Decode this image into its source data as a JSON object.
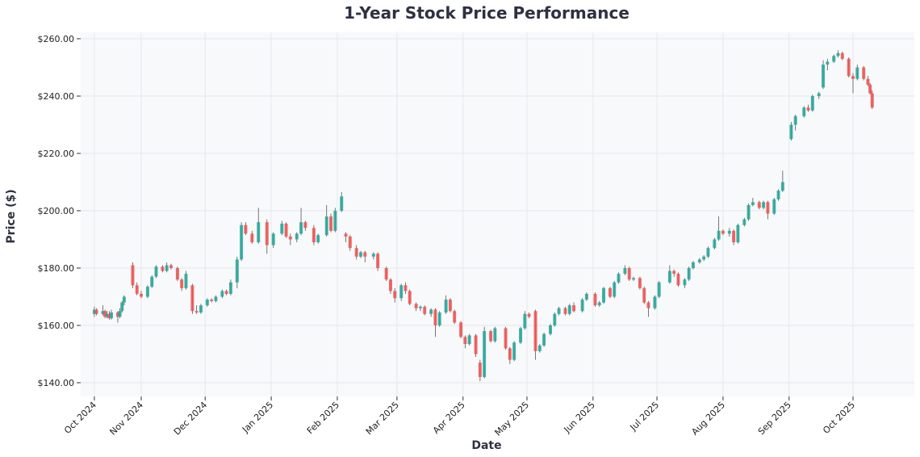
{
  "chart_data": {
    "type": "candlestick",
    "title": "1-Year Stock Price Performance",
    "xlabel": "Date",
    "ylabel": "Price ($)",
    "ylim": [
      135,
      262
    ],
    "yticks": [
      140,
      160,
      180,
      200,
      220,
      240,
      260
    ],
    "ytick_labels": [
      "$140.00",
      "$160.00",
      "$180.00",
      "$200.00",
      "$220.00",
      "$240.00",
      "$260.00"
    ],
    "xticks": [
      {
        "date": "2024-10-10",
        "label": "Oct 2024"
      },
      {
        "date": "2024-11-01",
        "label": "Nov 2024"
      },
      {
        "date": "2024-12-01",
        "label": "Dec 2024"
      },
      {
        "date": "2025-01-01",
        "label": "Jan 2025"
      },
      {
        "date": "2025-02-01",
        "label": "Feb 2025"
      },
      {
        "date": "2025-03-01",
        "label": "Mar 2025"
      },
      {
        "date": "2025-04-01",
        "label": "Apr 2025"
      },
      {
        "date": "2025-05-01",
        "label": "May 2025"
      },
      {
        "date": "2025-06-01",
        "label": "Jun 2025"
      },
      {
        "date": "2025-07-01",
        "label": "Jul 2025"
      },
      {
        "date": "2025-08-01",
        "label": "Aug 2025"
      },
      {
        "date": "2025-09-01",
        "label": "Sep 2025"
      },
      {
        "date": "2025-10-01",
        "label": "Oct 2025"
      }
    ],
    "grid": true,
    "colors": {
      "up": "#26a69a",
      "down": "#ef5350",
      "wick": "#555555",
      "plot_bg": "#f8f9fb",
      "grid": "#e6e8ec",
      "title": "#2d3142"
    },
    "columns": [
      "date",
      "open",
      "high",
      "low",
      "close"
    ],
    "candles": [
      [
        "2024-10-10",
        164,
        166.5,
        163,
        165.5
      ],
      [
        "2024-10-11",
        165.5,
        166,
        163.5,
        164
      ],
      [
        "2024-10-14",
        164,
        167,
        163.5,
        165
      ],
      [
        "2024-10-15",
        165,
        165.5,
        162.5,
        163
      ],
      [
        "2024-10-16",
        163,
        165,
        162.5,
        164
      ],
      [
        "2024-10-17",
        164,
        165,
        162,
        162.5
      ],
      [
        "2024-10-18",
        162.5,
        165.5,
        162,
        164.5
      ],
      [
        "2024-10-21",
        164.5,
        165,
        161,
        163
      ],
      [
        "2024-10-22",
        163,
        166,
        162.5,
        165
      ],
      [
        "2024-10-23",
        165,
        168.5,
        164.5,
        168
      ],
      [
        "2024-10-24",
        168,
        170.5,
        167,
        170
      ],
      [
        "2024-10-28",
        181,
        182,
        173,
        174
      ],
      [
        "2024-10-30",
        174,
        175,
        170.5,
        171
      ],
      [
        "2024-11-01",
        171,
        172,
        169.5,
        170
      ],
      [
        "2024-11-04",
        170,
        174,
        169.5,
        173.5
      ],
      [
        "2024-11-06",
        173.5,
        177.5,
        173,
        177
      ],
      [
        "2024-11-08",
        177,
        181,
        176.5,
        180.5
      ],
      [
        "2024-11-11",
        180.5,
        181,
        178.5,
        179
      ],
      [
        "2024-11-13",
        179,
        182,
        178.5,
        181
      ],
      [
        "2024-11-15",
        181,
        181.5,
        179.5,
        180
      ],
      [
        "2024-11-18",
        180,
        180.5,
        175.5,
        176
      ],
      [
        "2024-11-20",
        176,
        176.5,
        172,
        173
      ],
      [
        "2024-11-22",
        173,
        179,
        172.5,
        178
      ],
      [
        "2024-11-25",
        174,
        174.5,
        164,
        165
      ],
      [
        "2024-11-27",
        165,
        167,
        164,
        164.5
      ],
      [
        "2024-11-29",
        164.5,
        167.5,
        164,
        167
      ],
      [
        "2024-12-02",
        167,
        169.5,
        166.5,
        169
      ],
      [
        "2024-12-04",
        169,
        169.5,
        168,
        168.5
      ],
      [
        "2024-12-06",
        168.5,
        170.5,
        168,
        170
      ],
      [
        "2024-12-09",
        170,
        172.5,
        169.5,
        172
      ],
      [
        "2024-12-11",
        172,
        172.5,
        170.5,
        171
      ],
      [
        "2024-12-13",
        171,
        176,
        170.5,
        175
      ],
      [
        "2024-12-16",
        175,
        184,
        173,
        183
      ],
      [
        "2024-12-18",
        183,
        196,
        182.5,
        195
      ],
      [
        "2024-12-20",
        195,
        196,
        191.5,
        192
      ],
      [
        "2024-12-23",
        192,
        193,
        188.5,
        189
      ],
      [
        "2024-12-26",
        189,
        201,
        188.5,
        196
      ],
      [
        "2024-12-30",
        196,
        197,
        185,
        188
      ],
      [
        "2025-01-02",
        188,
        192.5,
        187,
        192
      ],
      [
        "2025-01-06",
        192,
        196.5,
        191.5,
        195.5
      ],
      [
        "2025-01-08",
        195.5,
        196,
        190.5,
        191
      ],
      [
        "2025-01-10",
        191,
        192,
        188,
        190
      ],
      [
        "2025-01-13",
        190,
        192.5,
        189,
        192
      ],
      [
        "2025-01-15",
        192,
        201,
        191.5,
        196
      ],
      [
        "2025-01-17",
        196,
        196.5,
        193,
        194
      ],
      [
        "2025-01-21",
        194,
        195,
        188,
        189
      ],
      [
        "2025-01-23",
        189,
        192,
        188.5,
        191.5
      ],
      [
        "2025-01-27",
        191.5,
        202,
        191,
        198
      ],
      [
        "2025-01-29",
        198,
        199,
        192.5,
        193
      ],
      [
        "2025-01-31",
        193,
        201,
        192.5,
        200
      ],
      [
        "2025-02-03",
        200,
        206.5,
        199.5,
        205
      ],
      [
        "2025-02-05",
        192,
        192.5,
        189,
        191
      ],
      [
        "2025-02-07",
        191,
        191.5,
        186,
        187
      ],
      [
        "2025-02-10",
        187,
        188,
        183,
        184
      ],
      [
        "2025-02-12",
        184,
        186,
        183.5,
        185.5
      ],
      [
        "2025-02-14",
        185.5,
        186,
        182,
        184
      ],
      [
        "2025-02-18",
        184,
        185.5,
        183,
        185
      ],
      [
        "2025-02-20",
        185,
        185.5,
        179,
        180
      ],
      [
        "2025-02-24",
        180,
        180.5,
        175.5,
        176
      ],
      [
        "2025-02-26",
        176,
        176.5,
        171,
        172
      ],
      [
        "2025-02-28",
        172,
        173,
        168,
        169.5
      ],
      [
        "2025-03-03",
        169.5,
        174.5,
        168.5,
        174
      ],
      [
        "2025-03-05",
        174,
        175,
        171,
        172
      ],
      [
        "2025-03-07",
        172,
        172.5,
        167,
        167.5
      ],
      [
        "2025-03-10",
        167.5,
        168,
        165,
        166
      ],
      [
        "2025-03-12",
        166,
        167,
        165,
        166.5
      ],
      [
        "2025-03-14",
        166.5,
        167,
        163.5,
        164
      ],
      [
        "2025-03-17",
        164,
        166,
        163,
        165.5
      ],
      [
        "2025-03-19",
        165.5,
        166,
        156,
        160
      ],
      [
        "2025-03-21",
        160,
        165,
        159.5,
        164.5
      ],
      [
        "2025-03-24",
        164.5,
        170.5,
        164,
        169
      ],
      [
        "2025-03-26",
        169,
        169.5,
        164.5,
        165
      ],
      [
        "2025-03-28",
        165,
        165.5,
        160.5,
        161
      ],
      [
        "2025-03-31",
        161,
        161.5,
        155.5,
        156
      ],
      [
        "2025-04-02",
        156,
        156.5,
        152,
        153.5
      ],
      [
        "2025-04-04",
        153.5,
        157,
        153,
        156.5
      ],
      [
        "2025-04-07",
        156.5,
        157,
        149,
        150
      ],
      [
        "2025-04-09",
        147,
        148,
        140.5,
        142
      ],
      [
        "2025-04-11",
        142,
        159.5,
        141.5,
        158
      ],
      [
        "2025-04-14",
        158,
        158.5,
        154,
        154.5
      ],
      [
        "2025-04-16",
        154.5,
        159.5,
        154,
        159
      ],
      [
        "2025-04-21",
        159,
        159.5,
        151.5,
        152
      ],
      [
        "2025-04-23",
        152,
        152.5,
        146.5,
        148
      ],
      [
        "2025-04-25",
        148,
        154.5,
        147.5,
        154
      ],
      [
        "2025-04-28",
        154,
        159.5,
        153.5,
        159
      ],
      [
        "2025-04-30",
        159,
        165,
        158.5,
        164
      ],
      [
        "2025-05-02",
        164,
        164.5,
        162.5,
        163
      ],
      [
        "2025-05-05",
        165,
        165.5,
        148,
        151
      ],
      [
        "2025-05-07",
        151,
        153.5,
        150.5,
        153
      ],
      [
        "2025-05-09",
        153,
        157.5,
        152.5,
        157
      ],
      [
        "2025-05-12",
        157,
        160.5,
        156.5,
        160
      ],
      [
        "2025-05-14",
        160,
        164.5,
        159.5,
        164
      ],
      [
        "2025-05-16",
        164,
        166.5,
        163.5,
        166
      ],
      [
        "2025-05-19",
        166,
        166.5,
        163.5,
        164
      ],
      [
        "2025-05-21",
        164,
        167.5,
        163.5,
        167
      ],
      [
        "2025-05-23",
        167,
        168,
        164.5,
        165
      ],
      [
        "2025-05-27",
        165,
        169.5,
        164.5,
        169
      ],
      [
        "2025-05-29",
        169,
        171.5,
        168.5,
        171
      ],
      [
        "2025-06-02",
        171,
        171.5,
        166.5,
        167
      ],
      [
        "2025-06-04",
        167,
        168.5,
        166.5,
        168
      ],
      [
        "2025-06-06",
        168,
        173.5,
        167.5,
        173
      ],
      [
        "2025-06-09",
        173,
        173.5,
        169.5,
        170
      ],
      [
        "2025-06-11",
        170,
        175.5,
        169.5,
        175
      ],
      [
        "2025-06-13",
        175,
        178.5,
        174.5,
        178
      ],
      [
        "2025-06-16",
        178,
        181,
        177.5,
        180
      ],
      [
        "2025-06-18",
        180,
        180.5,
        175.5,
        176
      ],
      [
        "2025-06-20",
        176,
        177,
        175.5,
        176.5
      ],
      [
        "2025-06-23",
        176.5,
        177,
        172.5,
        173
      ],
      [
        "2025-06-25",
        173,
        173.5,
        167.5,
        168
      ],
      [
        "2025-06-27",
        168,
        168.5,
        163,
        166
      ],
      [
        "2025-06-30",
        166,
        170.5,
        165.5,
        170
      ],
      [
        "2025-07-02",
        170,
        175.5,
        169.5,
        175
      ],
      [
        "2025-07-07",
        175,
        181,
        174.5,
        179
      ],
      [
        "2025-07-09",
        179,
        179.5,
        177,
        178
      ],
      [
        "2025-07-11",
        178,
        178.5,
        173.5,
        174
      ],
      [
        "2025-07-14",
        174,
        176.5,
        173,
        176
      ],
      [
        "2025-07-16",
        176,
        180.5,
        175.5,
        180
      ],
      [
        "2025-07-18",
        180,
        182.5,
        179.5,
        182
      ],
      [
        "2025-07-21",
        182,
        183.5,
        181.5,
        183
      ],
      [
        "2025-07-23",
        183,
        184.5,
        182.5,
        184
      ],
      [
        "2025-07-25",
        184,
        187.5,
        183.5,
        187
      ],
      [
        "2025-07-28",
        187,
        190.5,
        186.5,
        190
      ],
      [
        "2025-07-30",
        190,
        198,
        189.5,
        193
      ],
      [
        "2025-08-01",
        193,
        193.5,
        191.5,
        192
      ],
      [
        "2025-08-04",
        192,
        194,
        191,
        193
      ],
      [
        "2025-08-06",
        193,
        193.5,
        188,
        189
      ],
      [
        "2025-08-08",
        189,
        195.5,
        188.5,
        195
      ],
      [
        "2025-08-11",
        195,
        197.5,
        194.5,
        197
      ],
      [
        "2025-08-13",
        197,
        202.5,
        196.5,
        202
      ],
      [
        "2025-08-15",
        202,
        204.5,
        201.5,
        203
      ],
      [
        "2025-08-18",
        203,
        203.5,
        200.5,
        201
      ],
      [
        "2025-08-20",
        201,
        203.5,
        200.5,
        203
      ],
      [
        "2025-08-22",
        203,
        203.5,
        197,
        199
      ],
      [
        "2025-08-25",
        199,
        204.5,
        198.5,
        204
      ],
      [
        "2025-08-27",
        204,
        207.5,
        203.5,
        207
      ],
      [
        "2025-08-29",
        207,
        214,
        206.5,
        210
      ],
      [
        "2025-09-02",
        225,
        231,
        224.5,
        230
      ],
      [
        "2025-09-04",
        230,
        233.5,
        228,
        233
      ],
      [
        "2025-09-08",
        233,
        236.5,
        232.5,
        236
      ],
      [
        "2025-09-10",
        236,
        237,
        234.5,
        235
      ],
      [
        "2025-09-12",
        235,
        240.5,
        234.5,
        240
      ],
      [
        "2025-09-15",
        240,
        241.5,
        239,
        241
      ],
      [
        "2025-09-17",
        243,
        252.5,
        242.5,
        251
      ],
      [
        "2025-09-19",
        251,
        253,
        249,
        252
      ],
      [
        "2025-09-22",
        252,
        254.5,
        251.5,
        254
      ],
      [
        "2025-09-24",
        254,
        256,
        253.5,
        255
      ],
      [
        "2025-09-26",
        255,
        255.5,
        252.5,
        253
      ],
      [
        "2025-09-29",
        253,
        253.5,
        246.5,
        247
      ],
      [
        "2025-10-01",
        247,
        248,
        241,
        246
      ],
      [
        "2025-10-03",
        246,
        251,
        245.5,
        250
      ],
      [
        "2025-10-06",
        250,
        250.5,
        245.5,
        246
      ],
      [
        "2025-10-08",
        246,
        247,
        243.5,
        244
      ],
      [
        "2025-10-09",
        244,
        244.5,
        240.5,
        241
      ],
      [
        "2025-10-10",
        241,
        242,
        235.5,
        236
      ]
    ]
  }
}
